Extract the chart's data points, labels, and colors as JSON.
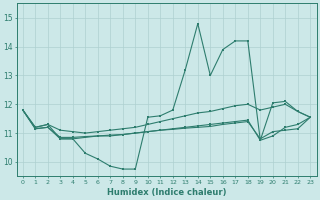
{
  "xlabel": "Humidex (Indice chaleur)",
  "bg_color": "#cce8e8",
  "line_color": "#2e7d6e",
  "grid_color": "#aed0d0",
  "xlim": [
    -0.5,
    23.5
  ],
  "ylim": [
    9.5,
    15.5
  ],
  "yticks": [
    10,
    11,
    12,
    13,
    14,
    15
  ],
  "xticks": [
    0,
    1,
    2,
    3,
    4,
    5,
    6,
    7,
    8,
    9,
    10,
    11,
    12,
    13,
    14,
    15,
    16,
    17,
    18,
    19,
    20,
    21,
    22,
    23
  ],
  "line1_x": [
    0,
    1,
    2,
    3,
    4,
    5,
    6,
    7,
    8,
    9,
    10,
    11,
    12,
    13,
    14,
    15,
    16,
    17,
    18,
    19,
    20,
    21,
    22,
    23
  ],
  "line1_y": [
    11.8,
    11.2,
    11.3,
    10.8,
    10.8,
    10.3,
    10.1,
    9.85,
    9.75,
    9.75,
    11.55,
    11.6,
    11.8,
    13.2,
    14.8,
    13.0,
    13.9,
    14.2,
    14.2,
    10.75,
    12.05,
    12.1,
    11.75,
    11.55
  ],
  "line2_x": [
    0,
    1,
    2,
    3,
    4,
    5,
    6,
    7,
    8,
    9,
    10,
    11,
    12,
    13,
    14,
    15,
    16,
    17,
    18,
    19,
    20,
    21,
    22,
    23
  ],
  "line2_y": [
    11.8,
    11.2,
    11.3,
    11.1,
    11.05,
    11.0,
    11.05,
    11.1,
    11.15,
    11.2,
    11.3,
    11.4,
    11.5,
    11.6,
    11.7,
    11.75,
    11.85,
    11.95,
    12.0,
    11.8,
    11.9,
    12.0,
    11.75,
    11.55
  ],
  "line3_x": [
    0,
    1,
    2,
    3,
    4,
    5,
    6,
    7,
    8,
    9,
    10,
    11,
    12,
    13,
    14,
    15,
    16,
    17,
    18,
    19,
    20,
    21,
    22,
    23
  ],
  "line3_y": [
    11.8,
    11.15,
    11.2,
    10.8,
    10.8,
    10.85,
    10.9,
    10.9,
    10.95,
    11.0,
    11.05,
    11.1,
    11.15,
    11.2,
    11.25,
    11.3,
    11.35,
    11.4,
    11.45,
    10.75,
    10.9,
    11.2,
    11.3,
    11.55
  ],
  "line4_x": [
    0,
    1,
    2,
    3,
    4,
    5,
    6,
    7,
    8,
    9,
    10,
    11,
    12,
    13,
    14,
    15,
    16,
    17,
    18,
    19,
    20,
    21,
    22,
    23
  ],
  "line4_y": [
    11.8,
    11.15,
    11.2,
    10.85,
    10.85,
    10.88,
    10.9,
    10.93,
    10.95,
    11.0,
    11.05,
    11.1,
    11.13,
    11.17,
    11.2,
    11.23,
    11.3,
    11.35,
    11.4,
    10.8,
    11.05,
    11.1,
    11.15,
    11.55
  ]
}
